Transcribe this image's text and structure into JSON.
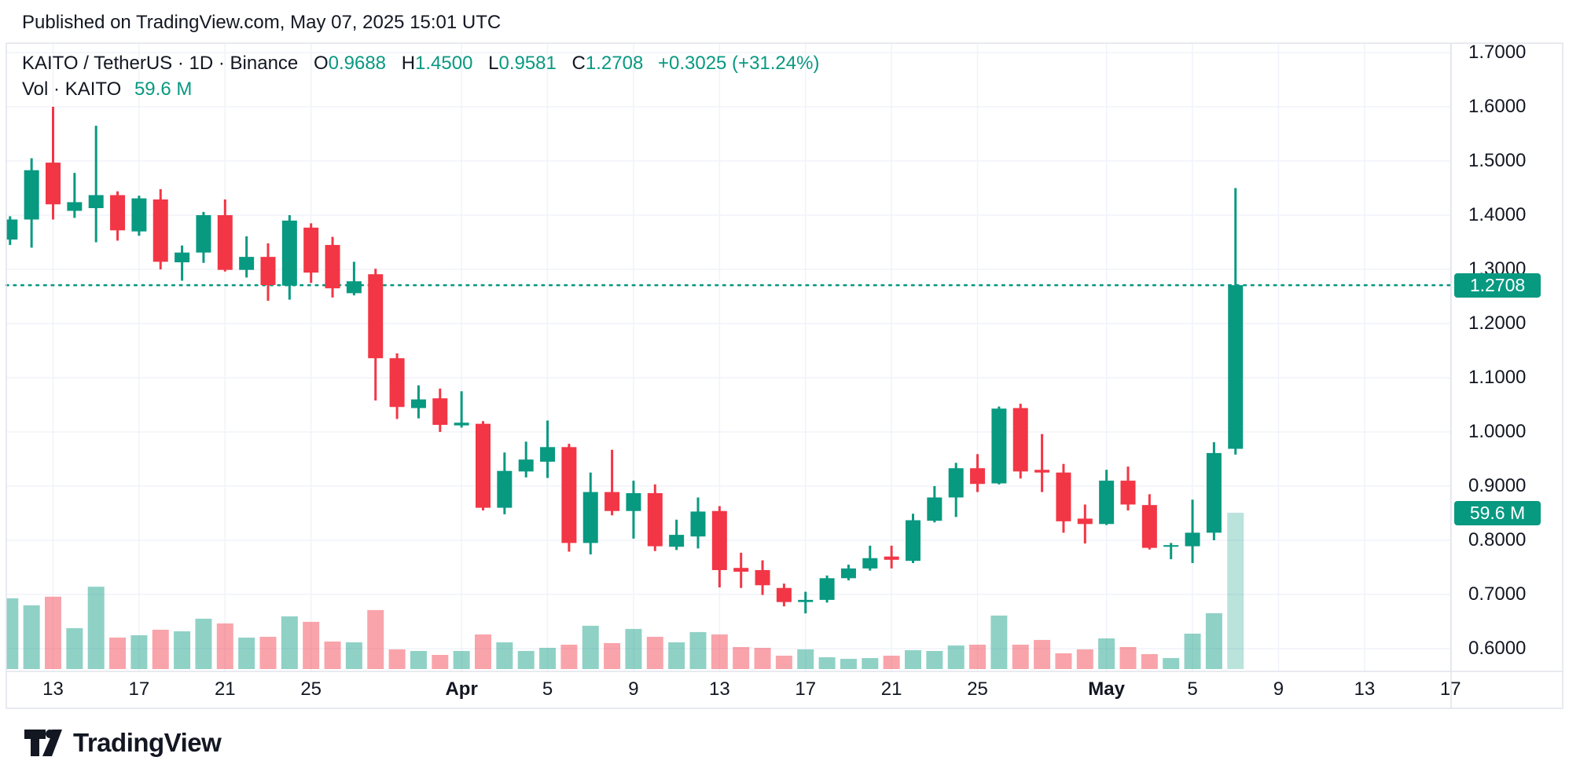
{
  "header": {
    "published_line": "Published on TradingView.com, May 07, 2025 15:01 UTC"
  },
  "legend": {
    "symbol_line": {
      "title": "KAITO / TetherUS · 1D · Binance",
      "o_label": "O",
      "o": "0.9688",
      "h_label": "H",
      "h": "1.4500",
      "l_label": "L",
      "l": "0.9581",
      "c_label": "C",
      "c": "1.2708",
      "change": "+0.3025 (+31.24%)"
    },
    "volume_line": {
      "label": "Vol · KAITO",
      "value": "59.6 M"
    }
  },
  "price_axis": {
    "labels": [
      "1.7000",
      "1.6000",
      "1.5000",
      "1.4000",
      "1.3000",
      "1.2000",
      "1.1000",
      "1.0000",
      "0.9000",
      "0.8000",
      "0.7000",
      "0.6000"
    ],
    "last_price_badge": "1.2708",
    "volume_badge": "59.6 M"
  },
  "time_axis": {
    "ticks": [
      {
        "label": "13",
        "day": 2,
        "bold": false
      },
      {
        "label": "17",
        "day": 6,
        "bold": false
      },
      {
        "label": "21",
        "day": 10,
        "bold": false
      },
      {
        "label": "25",
        "day": 14,
        "bold": false
      },
      {
        "label": "Apr",
        "day": 21,
        "bold": true
      },
      {
        "label": "5",
        "day": 25,
        "bold": false
      },
      {
        "label": "9",
        "day": 29,
        "bold": false
      },
      {
        "label": "13",
        "day": 33,
        "bold": false
      },
      {
        "label": "17",
        "day": 37,
        "bold": false
      },
      {
        "label": "21",
        "day": 41,
        "bold": false
      },
      {
        "label": "25",
        "day": 45,
        "bold": false
      },
      {
        "label": "May",
        "day": 51,
        "bold": true
      },
      {
        "label": "5",
        "day": 55,
        "bold": false
      },
      {
        "label": "9",
        "day": 59,
        "bold": false
      },
      {
        "label": "13",
        "day": 63,
        "bold": false
      },
      {
        "label": "17",
        "day": 67,
        "bold": false
      }
    ]
  },
  "footer": {
    "brand": "TradingView"
  },
  "colors": {
    "up": "#089981",
    "down": "#F23645",
    "text": "#131722",
    "grid": "#F0F3FA",
    "frame": "#E0E3EB",
    "badge_bg": "#089981",
    "badge_text": "#FFFFFF",
    "vol_up": "rgba(8,153,129,0.45)",
    "vol_down": "rgba(242,54,69,0.45)",
    "vol_last": "rgba(8,153,129,0.28)",
    "dotted_line": "#089981"
  },
  "chart_data": {
    "type": "candlestick",
    "title": "KAITO / TetherUS · 1D · Binance",
    "symbol": "KAITO/TetherUS",
    "interval": "1D",
    "exchange": "Binance",
    "ylim": [
      0.6,
      1.7
    ],
    "grid": true,
    "legend_position": "top-left",
    "dotted_level": 1.2708,
    "last_close": 1.2708,
    "last_volume_label": "59.6 M",
    "candles": [
      {
        "d": "Mar 11",
        "o": 1.355,
        "h": 1.398,
        "l": 1.345,
        "c": 1.392,
        "v": 27.0
      },
      {
        "d": "Mar 12",
        "o": 1.392,
        "h": 1.505,
        "l": 1.34,
        "c": 1.483,
        "v": 24.3
      },
      {
        "d": "Mar 13",
        "o": 1.497,
        "h": 1.6,
        "l": 1.392,
        "c": 1.42,
        "v": 27.6
      },
      {
        "d": "Mar 14",
        "o": 1.408,
        "h": 1.478,
        "l": 1.395,
        "c": 1.424,
        "v": 15.6
      },
      {
        "d": "Mar 15",
        "o": 1.413,
        "h": 1.565,
        "l": 1.35,
        "c": 1.437,
        "v": 31.4
      },
      {
        "d": "Mar 16",
        "o": 1.437,
        "h": 1.444,
        "l": 1.353,
        "c": 1.372,
        "v": 12.0
      },
      {
        "d": "Mar 17",
        "o": 1.37,
        "h": 1.436,
        "l": 1.362,
        "c": 1.431,
        "v": 12.9
      },
      {
        "d": "Mar 18",
        "o": 1.429,
        "h": 1.448,
        "l": 1.3,
        "c": 1.314,
        "v": 15.0
      },
      {
        "d": "Mar 19",
        "o": 1.313,
        "h": 1.344,
        "l": 1.279,
        "c": 1.331,
        "v": 14.4
      },
      {
        "d": "Mar 20",
        "o": 1.331,
        "h": 1.406,
        "l": 1.312,
        "c": 1.4,
        "v": 19.2
      },
      {
        "d": "Mar 21",
        "o": 1.4,
        "h": 1.429,
        "l": 1.296,
        "c": 1.299,
        "v": 17.4
      },
      {
        "d": "Mar 22",
        "o": 1.299,
        "h": 1.361,
        "l": 1.285,
        "c": 1.323,
        "v": 12.0
      },
      {
        "d": "Mar 23",
        "o": 1.323,
        "h": 1.348,
        "l": 1.242,
        "c": 1.271,
        "v": 12.3
      },
      {
        "d": "Mar 24",
        "o": 1.27,
        "h": 1.4,
        "l": 1.244,
        "c": 1.39,
        "v": 20.1
      },
      {
        "d": "Mar 25",
        "o": 1.377,
        "h": 1.385,
        "l": 1.275,
        "c": 1.294,
        "v": 18.0
      },
      {
        "d": "Mar 26",
        "o": 1.345,
        "h": 1.36,
        "l": 1.248,
        "c": 1.265,
        "v": 10.5
      },
      {
        "d": "Mar 27",
        "o": 1.256,
        "h": 1.314,
        "l": 1.252,
        "c": 1.278,
        "v": 10.2
      },
      {
        "d": "Mar 28",
        "o": 1.291,
        "h": 1.301,
        "l": 1.058,
        "c": 1.136,
        "v": 22.5
      },
      {
        "d": "Mar 29",
        "o": 1.136,
        "h": 1.145,
        "l": 1.024,
        "c": 1.046,
        "v": 7.5
      },
      {
        "d": "Mar 30",
        "o": 1.044,
        "h": 1.086,
        "l": 1.025,
        "c": 1.06,
        "v": 6.9
      },
      {
        "d": "Mar 31",
        "o": 1.062,
        "h": 1.08,
        "l": 1.0,
        "c": 1.013,
        "v": 5.4
      },
      {
        "d": "Apr 1",
        "o": 1.012,
        "h": 1.075,
        "l": 1.008,
        "c": 1.017,
        "v": 6.9
      },
      {
        "d": "Apr 2",
        "o": 1.015,
        "h": 1.02,
        "l": 0.855,
        "c": 0.86,
        "v": 13.2
      },
      {
        "d": "Apr 3",
        "o": 0.86,
        "h": 0.962,
        "l": 0.848,
        "c": 0.928,
        "v": 10.2
      },
      {
        "d": "Apr 4",
        "o": 0.927,
        "h": 0.982,
        "l": 0.916,
        "c": 0.949,
        "v": 6.9
      },
      {
        "d": "Apr 5",
        "o": 0.945,
        "h": 1.021,
        "l": 0.915,
        "c": 0.972,
        "v": 8.1
      },
      {
        "d": "Apr 6",
        "o": 0.972,
        "h": 0.978,
        "l": 0.779,
        "c": 0.795,
        "v": 9.3
      },
      {
        "d": "Apr 7",
        "o": 0.795,
        "h": 0.925,
        "l": 0.774,
        "c": 0.889,
        "v": 16.5
      },
      {
        "d": "Apr 8",
        "o": 0.889,
        "h": 0.967,
        "l": 0.846,
        "c": 0.854,
        "v": 9.9
      },
      {
        "d": "Apr 9",
        "o": 0.854,
        "h": 0.91,
        "l": 0.803,
        "c": 0.887,
        "v": 15.3
      },
      {
        "d": "Apr 10",
        "o": 0.887,
        "h": 0.903,
        "l": 0.78,
        "c": 0.789,
        "v": 12.3
      },
      {
        "d": "Apr 11",
        "o": 0.788,
        "h": 0.838,
        "l": 0.782,
        "c": 0.81,
        "v": 10.2
      },
      {
        "d": "Apr 12",
        "o": 0.807,
        "h": 0.879,
        "l": 0.785,
        "c": 0.853,
        "v": 14.1
      },
      {
        "d": "Apr 13",
        "o": 0.854,
        "h": 0.863,
        "l": 0.713,
        "c": 0.745,
        "v": 13.2
      },
      {
        "d": "Apr 14",
        "o": 0.749,
        "h": 0.777,
        "l": 0.712,
        "c": 0.742,
        "v": 8.4
      },
      {
        "d": "Apr 15",
        "o": 0.745,
        "h": 0.763,
        "l": 0.699,
        "c": 0.717,
        "v": 8.1
      },
      {
        "d": "Apr 16",
        "o": 0.712,
        "h": 0.72,
        "l": 0.678,
        "c": 0.686,
        "v": 5.1
      },
      {
        "d": "Apr 17",
        "o": 0.686,
        "h": 0.705,
        "l": 0.665,
        "c": 0.69,
        "v": 7.5
      },
      {
        "d": "Apr 18",
        "o": 0.69,
        "h": 0.735,
        "l": 0.685,
        "c": 0.73,
        "v": 4.5
      },
      {
        "d": "Apr 19",
        "o": 0.73,
        "h": 0.755,
        "l": 0.726,
        "c": 0.748,
        "v": 3.9
      },
      {
        "d": "Apr 20",
        "o": 0.748,
        "h": 0.79,
        "l": 0.744,
        "c": 0.767,
        "v": 4.2
      },
      {
        "d": "Apr 21",
        "o": 0.77,
        "h": 0.79,
        "l": 0.748,
        "c": 0.764,
        "v": 5.1
      },
      {
        "d": "Apr 22",
        "o": 0.762,
        "h": 0.849,
        "l": 0.758,
        "c": 0.837,
        "v": 7.2
      },
      {
        "d": "Apr 23",
        "o": 0.836,
        "h": 0.9,
        "l": 0.833,
        "c": 0.879,
        "v": 6.9
      },
      {
        "d": "Apr 24",
        "o": 0.879,
        "h": 0.943,
        "l": 0.843,
        "c": 0.933,
        "v": 9.0
      },
      {
        "d": "Apr 25",
        "o": 0.933,
        "h": 0.959,
        "l": 0.889,
        "c": 0.904,
        "v": 9.3
      },
      {
        "d": "Apr 26",
        "o": 0.905,
        "h": 1.047,
        "l": 0.903,
        "c": 1.043,
        "v": 20.4
      },
      {
        "d": "Apr 27",
        "o": 1.044,
        "h": 1.052,
        "l": 0.914,
        "c": 0.927,
        "v": 9.3
      },
      {
        "d": "Apr 28",
        "o": 0.93,
        "h": 0.996,
        "l": 0.889,
        "c": 0.925,
        "v": 11.1
      },
      {
        "d": "Apr 29",
        "o": 0.925,
        "h": 0.941,
        "l": 0.814,
        "c": 0.835,
        "v": 6.0
      },
      {
        "d": "Apr 30",
        "o": 0.84,
        "h": 0.866,
        "l": 0.794,
        "c": 0.83,
        "v": 7.5
      },
      {
        "d": "May 1",
        "o": 0.83,
        "h": 0.93,
        "l": 0.828,
        "c": 0.91,
        "v": 11.7
      },
      {
        "d": "May 2",
        "o": 0.91,
        "h": 0.936,
        "l": 0.855,
        "c": 0.866,
        "v": 8.4
      },
      {
        "d": "May 3",
        "o": 0.865,
        "h": 0.885,
        "l": 0.783,
        "c": 0.786,
        "v": 5.7
      },
      {
        "d": "May 4",
        "o": 0.788,
        "h": 0.795,
        "l": 0.765,
        "c": 0.791,
        "v": 4.2
      },
      {
        "d": "May 5",
        "o": 0.789,
        "h": 0.875,
        "l": 0.758,
        "c": 0.814,
        "v": 13.5
      },
      {
        "d": "May 6",
        "o": 0.814,
        "h": 0.981,
        "l": 0.8,
        "c": 0.961,
        "v": 21.3
      },
      {
        "d": "May 7",
        "o": 0.9688,
        "h": 1.45,
        "l": 0.9581,
        "c": 1.2708,
        "v": 59.6
      }
    ]
  }
}
